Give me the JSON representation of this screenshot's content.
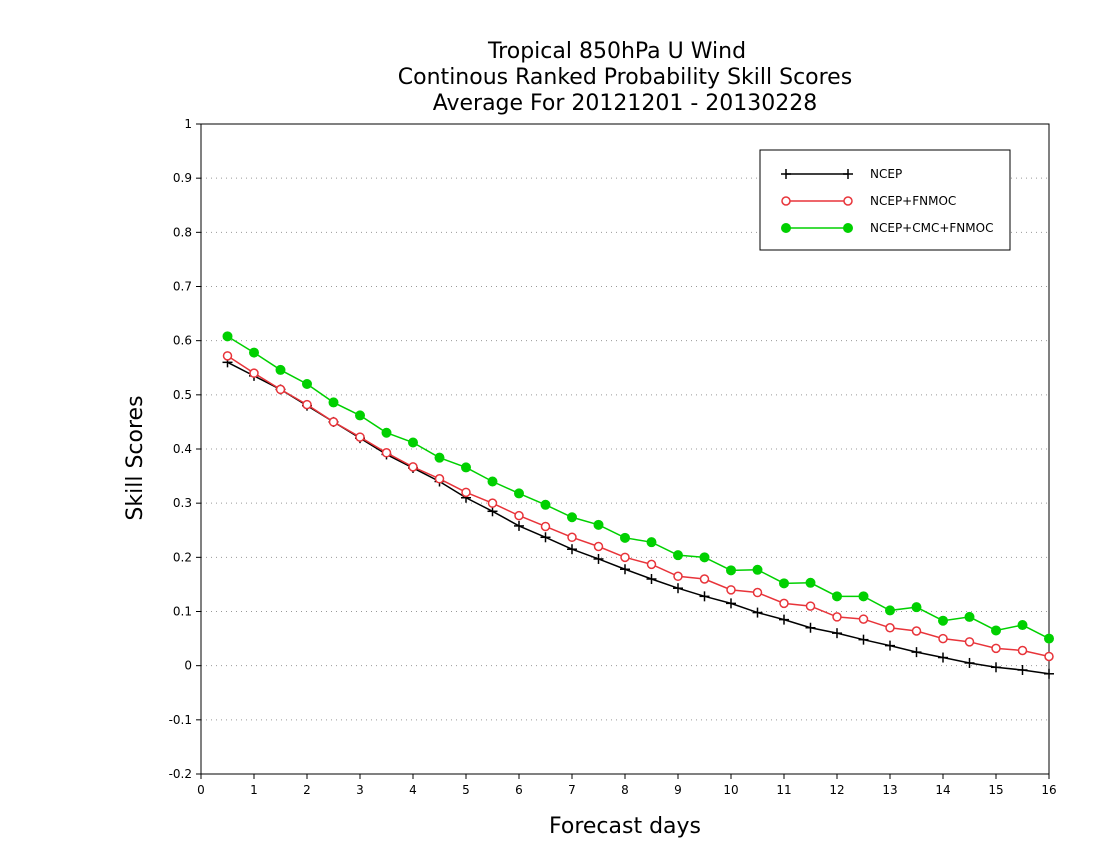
{
  "chart_data": {
    "type": "line",
    "title_lines": [
      "Tropical 850hPa U Wind",
      "Continous Ranked Probability Skill Scores",
      "Average For 20121201 - 20130228"
    ],
    "xlabel": "Forecast days",
    "ylabel": "Skill Scores",
    "xlim": [
      0,
      16
    ],
    "ylim": [
      -0.2,
      1
    ],
    "x_ticks": [
      "0",
      "1",
      "2",
      "3",
      "4",
      "5",
      "6",
      "7",
      "8",
      "9",
      "10",
      "11",
      "12",
      "13",
      "14",
      "15",
      "16"
    ],
    "y_ticks": [
      "-0.2",
      "-0.1",
      "0",
      "0.1",
      "0.2",
      "0.3",
      "0.4",
      "0.5",
      "0.6",
      "0.7",
      "0.8",
      "0.9",
      "1"
    ],
    "grid": "horizontal dotted",
    "legend_position": "top-right",
    "x": [
      0.5,
      1,
      1.5,
      2,
      2.5,
      3,
      3.5,
      4,
      4.5,
      5,
      5.5,
      6,
      6.5,
      7,
      7.5,
      8,
      8.5,
      9,
      9.5,
      10,
      10.5,
      11,
      11.5,
      12,
      12.5,
      13,
      13.5,
      14,
      14.5,
      15,
      15.5,
      16
    ],
    "series": [
      {
        "name": "NCEP",
        "color": "#000000",
        "marker": "plus",
        "values": [
          0.56,
          0.535,
          0.51,
          0.48,
          0.45,
          0.42,
          0.39,
          0.365,
          0.34,
          0.31,
          0.285,
          0.258,
          0.237,
          0.215,
          0.197,
          0.178,
          0.16,
          0.143,
          0.128,
          0.115,
          0.098,
          0.085,
          0.07,
          0.06,
          0.048,
          0.037,
          0.025,
          0.015,
          0.005,
          -0.003,
          -0.008,
          -0.015
        ]
      },
      {
        "name": "NCEP+FNMOC",
        "color": "#e8343a",
        "marker": "open-circle",
        "values": [
          0.572,
          0.54,
          0.51,
          0.482,
          0.45,
          0.422,
          0.393,
          0.367,
          0.345,
          0.32,
          0.3,
          0.277,
          0.257,
          0.237,
          0.22,
          0.2,
          0.187,
          0.165,
          0.16,
          0.14,
          0.135,
          0.115,
          0.11,
          0.09,
          0.086,
          0.07,
          0.064,
          0.05,
          0.044,
          0.032,
          0.028,
          0.017
        ]
      },
      {
        "name": "NCEP+CMC+FNMOC",
        "color": "#00d000",
        "marker": "filled-circle",
        "values": [
          0.608,
          0.578,
          0.546,
          0.52,
          0.486,
          0.462,
          0.43,
          0.412,
          0.384,
          0.366,
          0.34,
          0.318,
          0.297,
          0.274,
          0.26,
          0.236,
          0.228,
          0.204,
          0.2,
          0.176,
          0.177,
          0.152,
          0.153,
          0.128,
          0.128,
          0.102,
          0.108,
          0.083,
          0.09,
          0.065,
          0.075,
          0.05
        ]
      }
    ]
  }
}
